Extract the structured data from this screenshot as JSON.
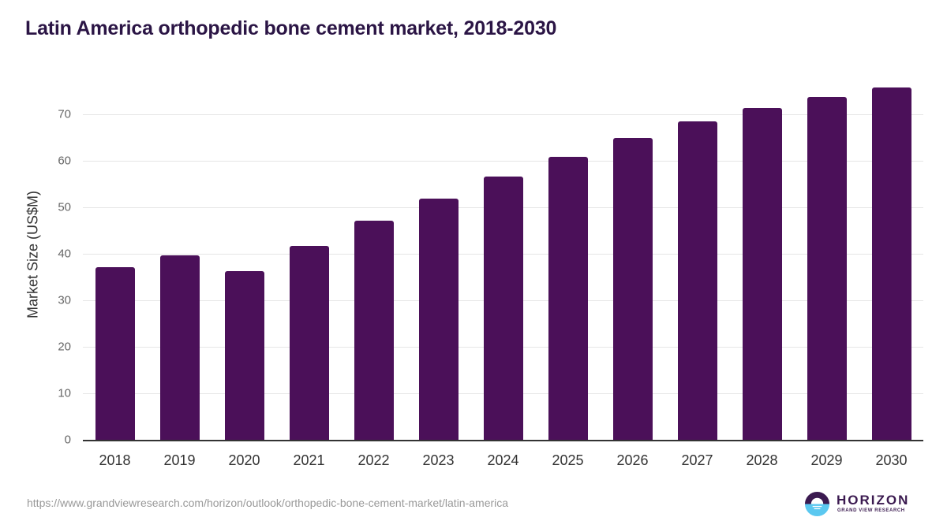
{
  "title": "Latin America orthopedic bone cement market, 2018-2030",
  "source_url": "https://www.grandviewresearch.com/horizon/outlook/orthopedic-bone-cement-market/latin-america",
  "logo": {
    "icon": "horizon-logo-icon",
    "wordmark": "HORIZON",
    "subtitle": "GRAND VIEW RESEARCH"
  },
  "colors": {
    "bar": "#4b1059",
    "title": "#2b1545",
    "grid": "#e6e6e6"
  },
  "chart_data": {
    "type": "bar",
    "title": "Latin America orthopedic bone cement market, 2018-2030",
    "xlabel": "",
    "ylabel": "Market Size (US$M)",
    "categories": [
      "2018",
      "2019",
      "2020",
      "2021",
      "2022",
      "2023",
      "2024",
      "2025",
      "2026",
      "2027",
      "2028",
      "2029",
      "2030"
    ],
    "values": [
      37.1,
      39.7,
      36.3,
      41.7,
      47.1,
      51.9,
      56.6,
      60.8,
      64.9,
      68.5,
      71.4,
      73.7,
      75.8
    ],
    "yticks": [
      "0",
      "10",
      "20",
      "30",
      "40",
      "50",
      "60",
      "70"
    ],
    "ylim": [
      0,
      80
    ],
    "grid": true,
    "legend": null,
    "series_color": "#4b1059"
  }
}
